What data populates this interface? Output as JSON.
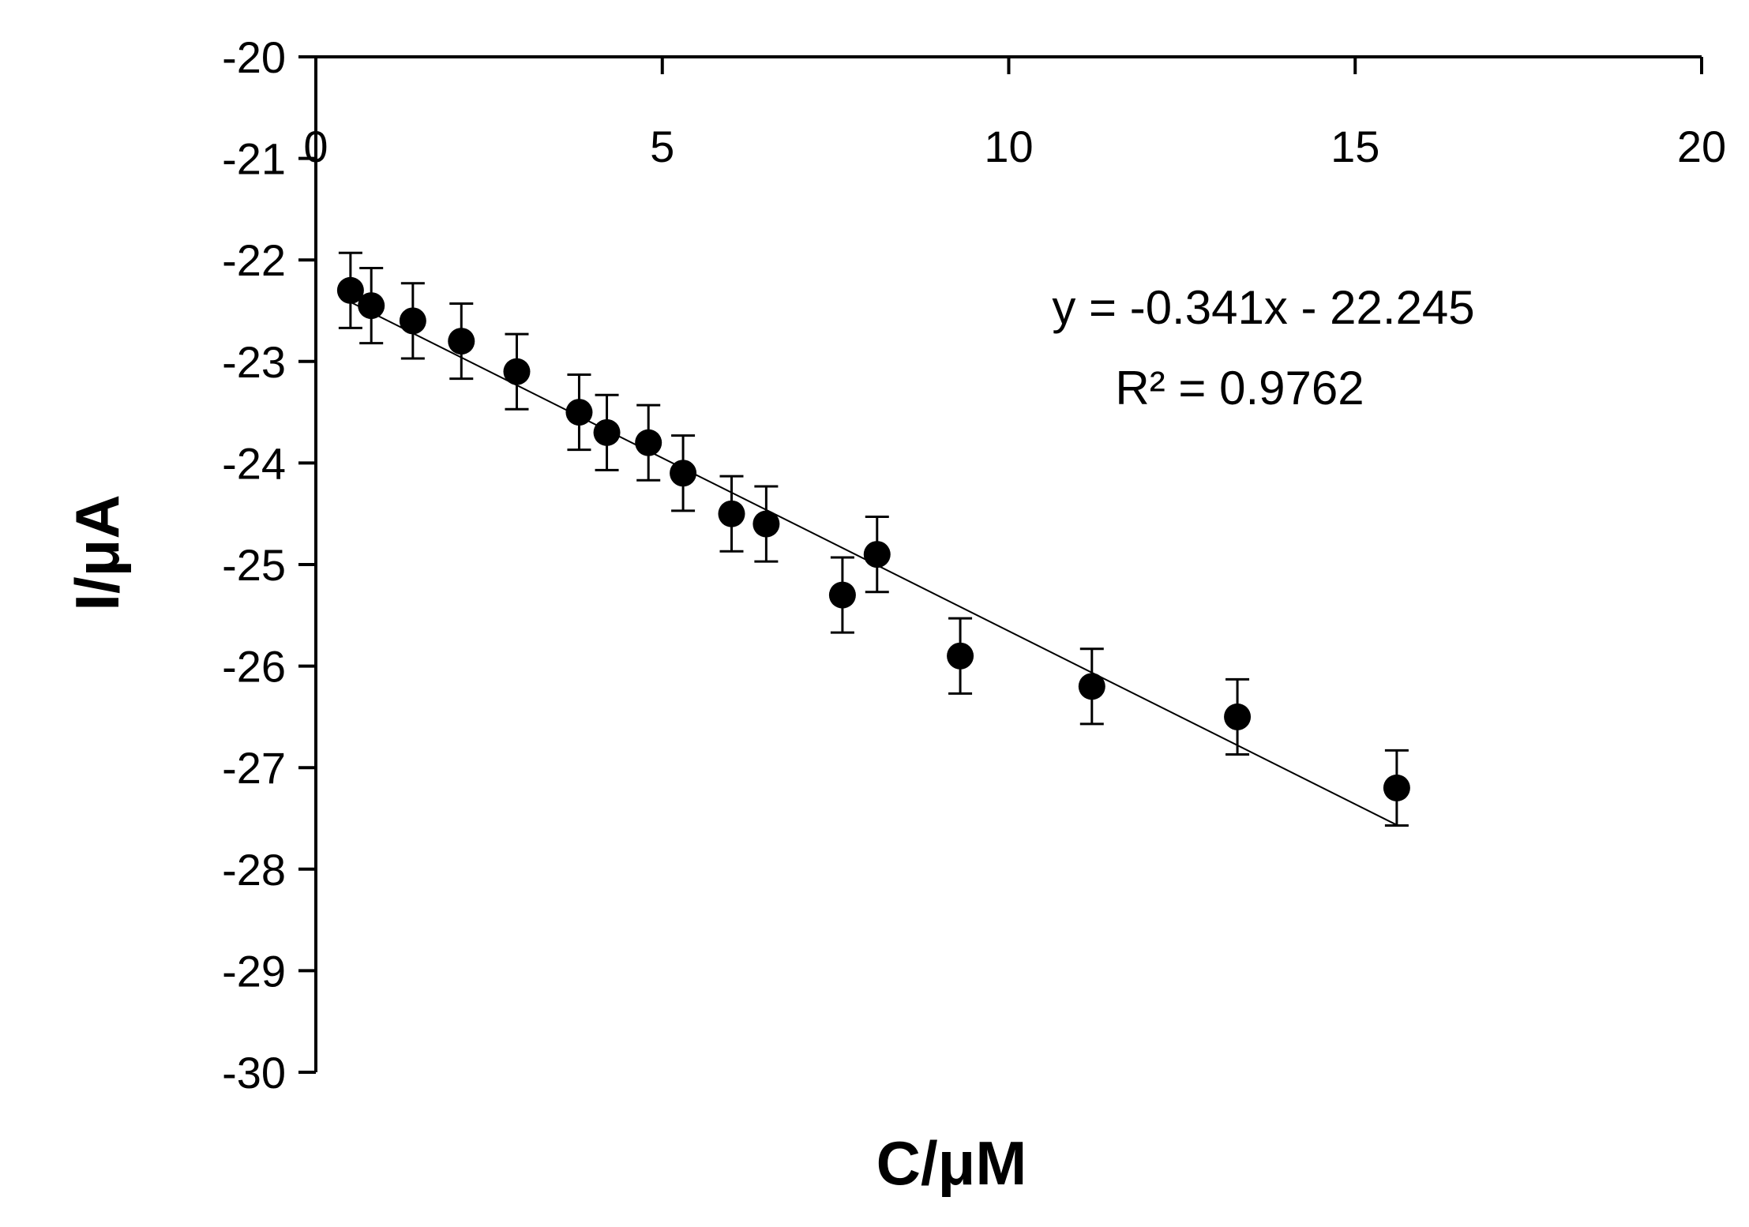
{
  "chart_data": {
    "type": "scatter",
    "title": "",
    "xlabel": "C/μM",
    "ylabel": "I/μA",
    "xlim": [
      0,
      20
    ],
    "ylim": [
      -30,
      -20
    ],
    "xticks": [
      0,
      5,
      10,
      15,
      20
    ],
    "yticks": [
      -20,
      -21,
      -22,
      -23,
      -24,
      -25,
      -26,
      -27,
      -28,
      -29,
      -30
    ],
    "x_axis_position": "top",
    "grid": false,
    "legend": "none",
    "colors": {
      "marker": "#000000",
      "line": "#000000"
    },
    "series": [
      {
        "x": [
          0.5,
          0.8,
          1.4,
          2.1,
          2.9,
          3.8,
          4.2,
          4.8,
          5.3,
          6.0,
          6.5,
          7.6,
          8.1,
          9.3,
          11.2,
          13.3,
          15.6
        ],
        "y": [
          -22.3,
          -22.45,
          -22.6,
          -22.8,
          -23.1,
          -23.5,
          -23.7,
          -23.8,
          -24.1,
          -24.5,
          -24.6,
          -25.3,
          -24.9,
          -25.9,
          -26.2,
          -26.5,
          -27.2
        ],
        "error": [
          0.37,
          0.37,
          0.37,
          0.37,
          0.37,
          0.37,
          0.37,
          0.37,
          0.37,
          0.37,
          0.37,
          0.37,
          0.37,
          0.37,
          0.37,
          0.37,
          0.37
        ]
      }
    ],
    "trendline": {
      "slope": -0.341,
      "intercept": -22.245,
      "x_range": [
        0.5,
        15.6
      ],
      "equation": "y = -0.341x - 22.245",
      "r2_label": "R² = 0.9762"
    }
  }
}
